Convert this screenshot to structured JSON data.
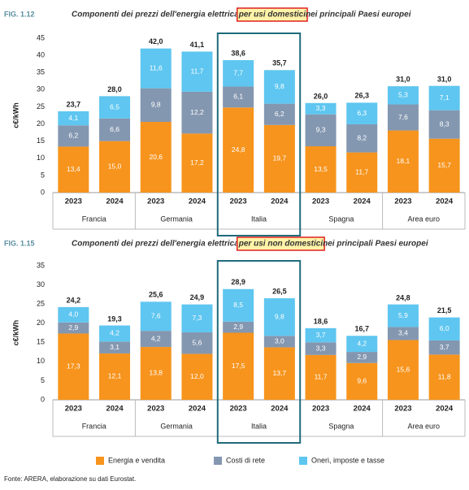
{
  "chart_data": [
    {
      "type": "stacked-bar",
      "figure": "FIG. 1.12",
      "title_pre": "Componenti dei prezzi dell'energia elettrica ",
      "title_highlight": "per usi domestici",
      "title_post": " nei principali Paesi europei",
      "ylabel": "c€/kWh",
      "ylim": [
        0,
        45
      ],
      "yticks": [
        0,
        5,
        10,
        15,
        20,
        25,
        30,
        35,
        40,
        45
      ],
      "categories": [
        "2023",
        "2024",
        "2023",
        "2024",
        "2023",
        "2024",
        "2023",
        "2024",
        "2023",
        "2024"
      ],
      "groups": [
        "Francia",
        "Germania",
        "Italia",
        "Spagna",
        "Area euro"
      ],
      "highlight_group": 2,
      "series": [
        {
          "name": "Energia e vendita",
          "color": "#f7941d",
          "values": [
            13.4,
            15.0,
            20.6,
            17.2,
            24.8,
            19.7,
            13.5,
            11.7,
            18.1,
            15.7
          ],
          "value_labels": [
            "13,4",
            "15,0",
            "20,6",
            "17,2",
            "24,8",
            "19,7",
            "13,5",
            "11,7",
            "18,1",
            "15,7"
          ]
        },
        {
          "name": "Costi di rete",
          "color": "#8497b0",
          "values": [
            6.2,
            6.6,
            9.8,
            12.2,
            6.1,
            6.2,
            9.3,
            8.2,
            7.6,
            8.3
          ],
          "value_labels": [
            "6,2",
            "6,6",
            "9,8",
            "12,2",
            "6,1",
            "6,2",
            "9,3",
            "8,2",
            "7,6",
            "8,3"
          ]
        },
        {
          "name": "Oneri, imposte e tasse",
          "color": "#5ec6f0",
          "values": [
            4.1,
            6.5,
            11.6,
            11.7,
            7.7,
            9.8,
            3.3,
            6.3,
            5.3,
            7.1
          ],
          "value_labels": [
            "4,1",
            "6,5",
            "11,6",
            "11,7",
            "7,7",
            "9,8",
            "3,3",
            "6,3",
            "5,3",
            "7,1"
          ]
        }
      ],
      "totals": {
        "values": [
          23.7,
          28.0,
          42.0,
          41.1,
          38.6,
          35.7,
          26.0,
          26.3,
          31.0,
          31.0
        ],
        "value_labels": [
          "23,7",
          "28,0",
          "42,0",
          "41,1",
          "38,6",
          "35,7",
          "26,0",
          "26,3",
          "31,0",
          "31,0"
        ]
      }
    },
    {
      "type": "stacked-bar",
      "figure": "FIG. 1.15",
      "title_pre": "Componenti dei prezzi dell'energia elettrica ",
      "title_highlight": "per usi non domestici",
      "title_post": " nei principali Paesi europei",
      "ylabel": "c€/kWh",
      "ylim": [
        0,
        35
      ],
      "yticks": [
        0,
        5,
        10,
        15,
        20,
        25,
        30,
        35
      ],
      "categories": [
        "2023",
        "2024",
        "2023",
        "2024",
        "2023",
        "2024",
        "2023",
        "2024",
        "2023",
        "2024"
      ],
      "groups": [
        "Francia",
        "Germania",
        "Italia",
        "Spagna",
        "Area euro"
      ],
      "highlight_group": 2,
      "series": [
        {
          "color": "#f7941d",
          "values": [
            17.3,
            12.1,
            13.8,
            12.0,
            17.5,
            13.7,
            11.7,
            9.6,
            15.6,
            11.8
          ],
          "value_labels": [
            "17,3",
            "12,1",
            "13,8",
            "12,0",
            "17,5",
            "13,7",
            "11,7",
            "9,6",
            "15,6",
            "11,8"
          ]
        },
        {
          "color": "#8497b0",
          "values": [
            2.9,
            3.1,
            4.2,
            5.6,
            2.9,
            3.0,
            3.3,
            2.9,
            3.4,
            3.7
          ],
          "value_labels": [
            "2,9",
            "3,1",
            "4,2",
            "5,6",
            "2,9",
            "3,0",
            "3,3",
            "2,9",
            "3,4",
            "3,7"
          ]
        },
        {
          "color": "#5ec6f0",
          "values": [
            4.0,
            4.2,
            7.6,
            7.3,
            8.5,
            9.8,
            3.7,
            4.2,
            5.9,
            6.0
          ],
          "value_labels": [
            "4,0",
            "4,2",
            "7,6",
            "7,3",
            "8,5",
            "9,8",
            "3,7",
            "4,2",
            "5,9",
            "6,0"
          ]
        }
      ],
      "totals": {
        "values": [
          24.2,
          19.3,
          25.6,
          24.9,
          28.9,
          26.5,
          18.6,
          16.7,
          24.8,
          21.5
        ],
        "value_labels": [
          "24,2",
          "19,3",
          "25,6",
          "24,9",
          "28,9",
          "26,5",
          "18,6",
          "16,7",
          "24,8",
          "21,5"
        ]
      }
    }
  ],
  "source": "Fonte: ARERA, elaborazione su dati Eurostat."
}
